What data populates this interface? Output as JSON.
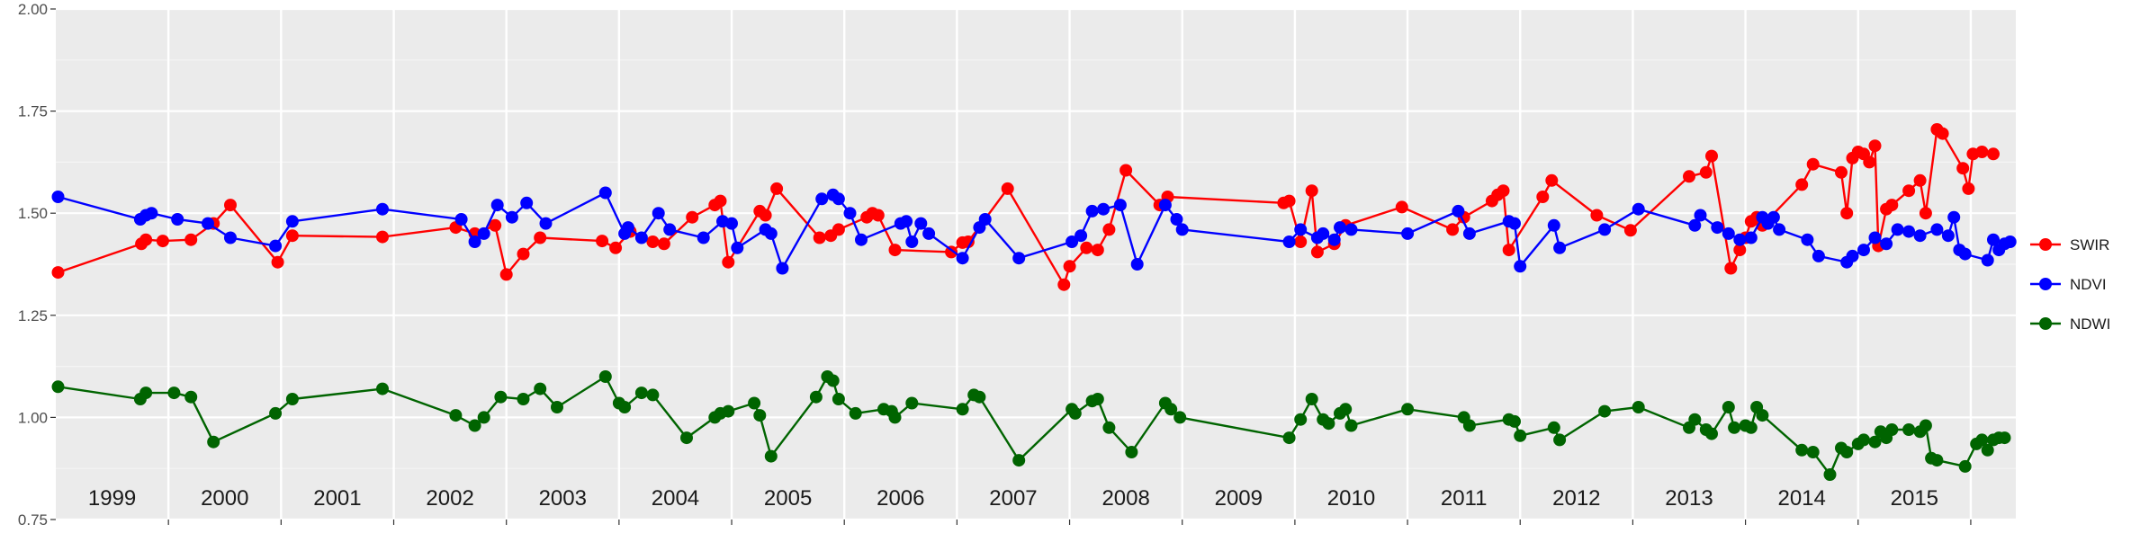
{
  "chart_data": {
    "type": "line",
    "title": "",
    "xlabel": "",
    "ylabel": "",
    "ylim": [
      0.75,
      2.0
    ],
    "xlim": [
      1999.0,
      2015.9
    ],
    "yticks": [
      "0.75",
      "1.00",
      "1.25",
      "1.50",
      "1.75",
      "2.00"
    ],
    "year_labels": [
      "1999",
      "2000",
      "2001",
      "2002",
      "2003",
      "2004",
      "2005",
      "2006",
      "2007",
      "2008",
      "2009",
      "2010",
      "2011",
      "2012",
      "2013",
      "2014",
      "2015"
    ],
    "grid": true,
    "legend_position": "right",
    "series": [
      {
        "name": "SWIR",
        "color": "#ff0000",
        "points": [
          [
            1999.02,
            1.355
          ],
          [
            1999.76,
            1.425
          ],
          [
            1999.8,
            1.435
          ],
          [
            1999.95,
            1.432
          ],
          [
            2000.2,
            1.435
          ],
          [
            2000.4,
            1.475
          ],
          [
            2000.55,
            1.52
          ],
          [
            2000.97,
            1.38
          ],
          [
            2001.1,
            1.445
          ],
          [
            2001.9,
            1.442
          ],
          [
            2002.55,
            1.465
          ],
          [
            2002.72,
            1.45
          ],
          [
            2002.9,
            1.47
          ],
          [
            2003.0,
            1.35
          ],
          [
            2003.15,
            1.4
          ],
          [
            2003.3,
            1.44
          ],
          [
            2003.85,
            1.432
          ],
          [
            2003.97,
            1.415
          ],
          [
            2004.1,
            1.455
          ],
          [
            2004.3,
            1.43
          ],
          [
            2004.4,
            1.425
          ],
          [
            2004.65,
            1.49
          ],
          [
            2004.85,
            1.52
          ],
          [
            2004.9,
            1.53
          ],
          [
            2004.97,
            1.38
          ],
          [
            2005.25,
            1.505
          ],
          [
            2005.3,
            1.495
          ],
          [
            2005.4,
            1.56
          ],
          [
            2005.78,
            1.44
          ],
          [
            2005.88,
            1.445
          ],
          [
            2005.95,
            1.46
          ],
          [
            2006.2,
            1.49
          ],
          [
            2006.25,
            1.5
          ],
          [
            2006.3,
            1.495
          ],
          [
            2006.45,
            1.41
          ],
          [
            2006.95,
            1.405
          ],
          [
            2007.05,
            1.428
          ],
          [
            2007.1,
            1.43
          ],
          [
            2007.45,
            1.56
          ],
          [
            2007.95,
            1.325
          ],
          [
            2008.0,
            1.37
          ],
          [
            2008.15,
            1.415
          ],
          [
            2008.25,
            1.41
          ],
          [
            2008.35,
            1.46
          ],
          [
            2008.5,
            1.605
          ],
          [
            2008.8,
            1.52
          ],
          [
            2008.87,
            1.54
          ],
          [
            2009.9,
            1.525
          ],
          [
            2009.95,
            1.53
          ],
          [
            2010.05,
            1.43
          ],
          [
            2010.15,
            1.555
          ],
          [
            2010.2,
            1.405
          ],
          [
            2010.35,
            1.425
          ],
          [
            2010.45,
            1.47
          ],
          [
            2010.95,
            1.515
          ],
          [
            2011.4,
            1.46
          ],
          [
            2011.5,
            1.49
          ],
          [
            2011.75,
            1.53
          ],
          [
            2011.8,
            1.545
          ],
          [
            2011.85,
            1.555
          ],
          [
            2011.9,
            1.41
          ],
          [
            2012.2,
            1.54
          ],
          [
            2012.28,
            1.58
          ],
          [
            2012.68,
            1.495
          ],
          [
            2012.98,
            1.458
          ],
          [
            2013.5,
            1.59
          ],
          [
            2013.65,
            1.6
          ],
          [
            2013.7,
            1.64
          ],
          [
            2013.87,
            1.365
          ],
          [
            2013.95,
            1.41
          ],
          [
            2014.0,
            1.44
          ],
          [
            2014.05,
            1.48
          ],
          [
            2014.1,
            1.49
          ],
          [
            2014.15,
            1.47
          ],
          [
            2014.5,
            1.57
          ],
          [
            2014.6,
            1.62
          ],
          [
            2014.85,
            1.6
          ],
          [
            2014.9,
            1.5
          ],
          [
            2014.95,
            1.635
          ],
          [
            2015.0,
            1.65
          ],
          [
            2015.05,
            1.645
          ],
          [
            2015.1,
            1.625
          ],
          [
            2015.15,
            1.665
          ],
          [
            2015.18,
            1.42
          ],
          [
            2015.25,
            1.51
          ],
          [
            2015.3,
            1.52
          ],
          [
            2015.45,
            1.555
          ],
          [
            2015.55,
            1.58
          ],
          [
            2015.6,
            1.5
          ],
          [
            2015.7,
            1.705
          ],
          [
            2015.75,
            1.695
          ],
          [
            2015.93,
            1.61
          ],
          [
            2015.98,
            1.56
          ],
          [
            2016.02,
            1.645
          ],
          [
            2016.1,
            1.65
          ],
          [
            2016.2,
            1.645
          ]
        ]
      },
      {
        "name": "NDVI",
        "color": "#0000ff",
        "points": [
          [
            1999.02,
            1.54
          ],
          [
            1999.75,
            1.485
          ],
          [
            1999.8,
            1.495
          ],
          [
            1999.85,
            1.5
          ],
          [
            2000.08,
            1.485
          ],
          [
            2000.35,
            1.475
          ],
          [
            2000.55,
            1.44
          ],
          [
            2000.95,
            1.42
          ],
          [
            2001.1,
            1.48
          ],
          [
            2001.9,
            1.51
          ],
          [
            2002.6,
            1.485
          ],
          [
            2002.72,
            1.43
          ],
          [
            2002.8,
            1.45
          ],
          [
            2002.92,
            1.52
          ],
          [
            2003.05,
            1.49
          ],
          [
            2003.18,
            1.525
          ],
          [
            2003.35,
            1.475
          ],
          [
            2003.88,
            1.55
          ],
          [
            2004.05,
            1.45
          ],
          [
            2004.08,
            1.465
          ],
          [
            2004.2,
            1.44
          ],
          [
            2004.35,
            1.5
          ],
          [
            2004.45,
            1.46
          ],
          [
            2004.75,
            1.44
          ],
          [
            2004.92,
            1.48
          ],
          [
            2005.0,
            1.475
          ],
          [
            2005.05,
            1.415
          ],
          [
            2005.3,
            1.46
          ],
          [
            2005.35,
            1.45
          ],
          [
            2005.45,
            1.365
          ],
          [
            2005.8,
            1.535
          ],
          [
            2005.9,
            1.545
          ],
          [
            2005.95,
            1.535
          ],
          [
            2006.05,
            1.5
          ],
          [
            2006.15,
            1.435
          ],
          [
            2006.5,
            1.475
          ],
          [
            2006.55,
            1.48
          ],
          [
            2006.6,
            1.43
          ],
          [
            2006.68,
            1.475
          ],
          [
            2006.75,
            1.45
          ],
          [
            2007.05,
            1.39
          ],
          [
            2007.2,
            1.465
          ],
          [
            2007.25,
            1.485
          ],
          [
            2007.55,
            1.39
          ],
          [
            2008.02,
            1.43
          ],
          [
            2008.1,
            1.445
          ],
          [
            2008.2,
            1.505
          ],
          [
            2008.3,
            1.51
          ],
          [
            2008.45,
            1.52
          ],
          [
            2008.6,
            1.375
          ],
          [
            2008.85,
            1.52
          ],
          [
            2008.95,
            1.485
          ],
          [
            2009.0,
            1.46
          ],
          [
            2009.95,
            1.43
          ],
          [
            2010.05,
            1.46
          ],
          [
            2010.2,
            1.44
          ],
          [
            2010.25,
            1.45
          ],
          [
            2010.35,
            1.435
          ],
          [
            2010.4,
            1.465
          ],
          [
            2010.5,
            1.46
          ],
          [
            2011.0,
            1.45
          ],
          [
            2011.45,
            1.505
          ],
          [
            2011.55,
            1.45
          ],
          [
            2011.9,
            1.48
          ],
          [
            2011.95,
            1.475
          ],
          [
            2012.0,
            1.37
          ],
          [
            2012.3,
            1.47
          ],
          [
            2012.35,
            1.415
          ],
          [
            2012.75,
            1.46
          ],
          [
            2013.05,
            1.51
          ],
          [
            2013.55,
            1.47
          ],
          [
            2013.6,
            1.495
          ],
          [
            2013.75,
            1.465
          ],
          [
            2013.85,
            1.45
          ],
          [
            2013.95,
            1.435
          ],
          [
            2014.05,
            1.44
          ],
          [
            2014.15,
            1.49
          ],
          [
            2014.2,
            1.475
          ],
          [
            2014.25,
            1.49
          ],
          [
            2014.3,
            1.46
          ],
          [
            2014.55,
            1.435
          ],
          [
            2014.65,
            1.395
          ],
          [
            2014.9,
            1.38
          ],
          [
            2014.95,
            1.395
          ],
          [
            2015.05,
            1.41
          ],
          [
            2015.15,
            1.44
          ],
          [
            2015.25,
            1.425
          ],
          [
            2015.35,
            1.46
          ],
          [
            2015.45,
            1.455
          ],
          [
            2015.55,
            1.445
          ],
          [
            2015.7,
            1.46
          ],
          [
            2015.8,
            1.445
          ],
          [
            2015.85,
            1.49
          ],
          [
            2015.9,
            1.41
          ],
          [
            2015.95,
            1.4
          ],
          [
            2016.15,
            1.385
          ],
          [
            2016.2,
            1.435
          ],
          [
            2016.25,
            1.41
          ],
          [
            2016.3,
            1.425
          ],
          [
            2016.35,
            1.43
          ]
        ]
      },
      {
        "name": "NDWI",
        "color": "#006400",
        "points": [
          [
            1999.02,
            1.075
          ],
          [
            1999.75,
            1.045
          ],
          [
            1999.8,
            1.06
          ],
          [
            2000.05,
            1.06
          ],
          [
            2000.2,
            1.05
          ],
          [
            2000.4,
            0.94
          ],
          [
            2000.95,
            1.01
          ],
          [
            2001.1,
            1.045
          ],
          [
            2001.9,
            1.07
          ],
          [
            2002.55,
            1.005
          ],
          [
            2002.72,
            0.98
          ],
          [
            2002.8,
            1.0
          ],
          [
            2002.95,
            1.05
          ],
          [
            2003.15,
            1.045
          ],
          [
            2003.3,
            1.07
          ],
          [
            2003.45,
            1.025
          ],
          [
            2003.88,
            1.1
          ],
          [
            2004.0,
            1.035
          ],
          [
            2004.05,
            1.025
          ],
          [
            2004.2,
            1.06
          ],
          [
            2004.3,
            1.055
          ],
          [
            2004.6,
            0.95
          ],
          [
            2004.85,
            1.0
          ],
          [
            2004.9,
            1.01
          ],
          [
            2004.97,
            1.015
          ],
          [
            2005.2,
            1.035
          ],
          [
            2005.25,
            1.005
          ],
          [
            2005.35,
            0.905
          ],
          [
            2005.75,
            1.05
          ],
          [
            2005.85,
            1.1
          ],
          [
            2005.9,
            1.09
          ],
          [
            2005.95,
            1.045
          ],
          [
            2006.1,
            1.01
          ],
          [
            2006.35,
            1.02
          ],
          [
            2006.42,
            1.015
          ],
          [
            2006.45,
            1.0
          ],
          [
            2006.6,
            1.035
          ],
          [
            2007.05,
            1.02
          ],
          [
            2007.15,
            1.055
          ],
          [
            2007.2,
            1.05
          ],
          [
            2007.55,
            0.895
          ],
          [
            2008.02,
            1.02
          ],
          [
            2008.05,
            1.01
          ],
          [
            2008.2,
            1.04
          ],
          [
            2008.25,
            1.045
          ],
          [
            2008.35,
            0.975
          ],
          [
            2008.55,
            0.915
          ],
          [
            2008.85,
            1.035
          ],
          [
            2008.9,
            1.02
          ],
          [
            2008.98,
            1.0
          ],
          [
            2009.95,
            0.95
          ],
          [
            2010.05,
            0.995
          ],
          [
            2010.15,
            1.045
          ],
          [
            2010.25,
            0.995
          ],
          [
            2010.3,
            0.985
          ],
          [
            2010.4,
            1.01
          ],
          [
            2010.45,
            1.02
          ],
          [
            2010.5,
            0.98
          ],
          [
            2011.0,
            1.02
          ],
          [
            2011.5,
            1.0
          ],
          [
            2011.55,
            0.98
          ],
          [
            2011.9,
            0.995
          ],
          [
            2011.95,
            0.99
          ],
          [
            2012.0,
            0.955
          ],
          [
            2012.3,
            0.975
          ],
          [
            2012.35,
            0.945
          ],
          [
            2012.75,
            1.015
          ],
          [
            2013.05,
            1.025
          ],
          [
            2013.5,
            0.975
          ],
          [
            2013.55,
            0.995
          ],
          [
            2013.65,
            0.97
          ],
          [
            2013.7,
            0.96
          ],
          [
            2013.85,
            1.025
          ],
          [
            2013.9,
            0.975
          ],
          [
            2014.0,
            0.98
          ],
          [
            2014.05,
            0.975
          ],
          [
            2014.1,
            1.025
          ],
          [
            2014.15,
            1.005
          ],
          [
            2014.5,
            0.92
          ],
          [
            2014.6,
            0.915
          ],
          [
            2014.75,
            0.86
          ],
          [
            2014.85,
            0.925
          ],
          [
            2014.9,
            0.915
          ],
          [
            2015.0,
            0.935
          ],
          [
            2015.05,
            0.945
          ],
          [
            2015.15,
            0.94
          ],
          [
            2015.2,
            0.965
          ],
          [
            2015.25,
            0.95
          ],
          [
            2015.3,
            0.97
          ],
          [
            2015.45,
            0.97
          ],
          [
            2015.55,
            0.965
          ],
          [
            2015.6,
            0.98
          ],
          [
            2015.65,
            0.9
          ],
          [
            2015.7,
            0.895
          ],
          [
            2015.95,
            0.88
          ],
          [
            2016.05,
            0.935
          ],
          [
            2016.1,
            0.945
          ],
          [
            2016.15,
            0.92
          ],
          [
            2016.2,
            0.945
          ],
          [
            2016.25,
            0.95
          ],
          [
            2016.3,
            0.95
          ]
        ]
      }
    ]
  }
}
